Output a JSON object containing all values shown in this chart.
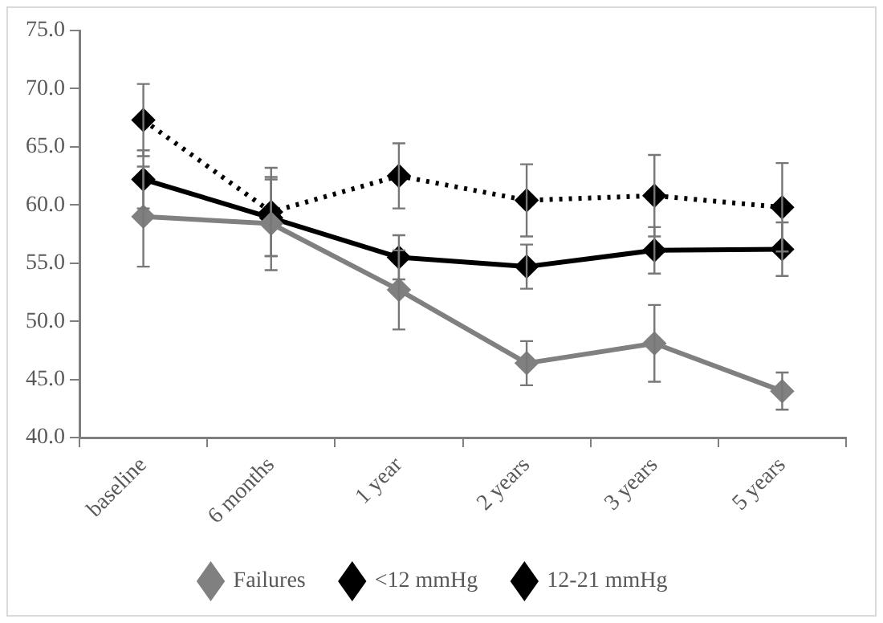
{
  "chart_data": {
    "type": "line",
    "categories": [
      "baseline",
      "6 months",
      "1 year",
      "2 years",
      "3 years",
      "5 years"
    ],
    "ylim": [
      40,
      75
    ],
    "yticks": [
      {
        "value": 40,
        "label": "40.0"
      },
      {
        "value": 45,
        "label": "45.0"
      },
      {
        "value": 50,
        "label": "50.0"
      },
      {
        "value": 55,
        "label": "55.0"
      },
      {
        "value": 60,
        "label": "60.0"
      },
      {
        "value": 65,
        "label": "65.0"
      },
      {
        "value": 70,
        "label": "70.0"
      },
      {
        "value": 75,
        "label": "75.0"
      }
    ],
    "series": [
      {
        "name": "Failures",
        "color": "#808080",
        "line_style": "solid",
        "values": [
          59.0,
          58.4,
          52.7,
          46.4,
          48.1,
          44.0
        ],
        "errors": [
          4.3,
          4.0,
          3.4,
          1.9,
          3.3,
          1.6
        ]
      },
      {
        "name": "<12 mmHg",
        "color": "#000000",
        "line_style": "solid",
        "values": [
          62.2,
          58.9,
          55.5,
          54.7,
          56.1,
          56.2
        ],
        "errors": [
          2.5,
          3.3,
          1.9,
          1.9,
          2.0,
          2.3
        ]
      },
      {
        "name": "12-21 mmHg",
        "color": "#000000",
        "line_style": "dotted",
        "values": [
          67.3,
          59.4,
          62.5,
          60.4,
          60.8,
          59.8
        ],
        "errors": [
          3.1,
          3.8,
          2.8,
          3.1,
          3.5,
          3.8
        ]
      }
    ],
    "marker": "diamond",
    "grid": false,
    "legend": "bottom"
  }
}
